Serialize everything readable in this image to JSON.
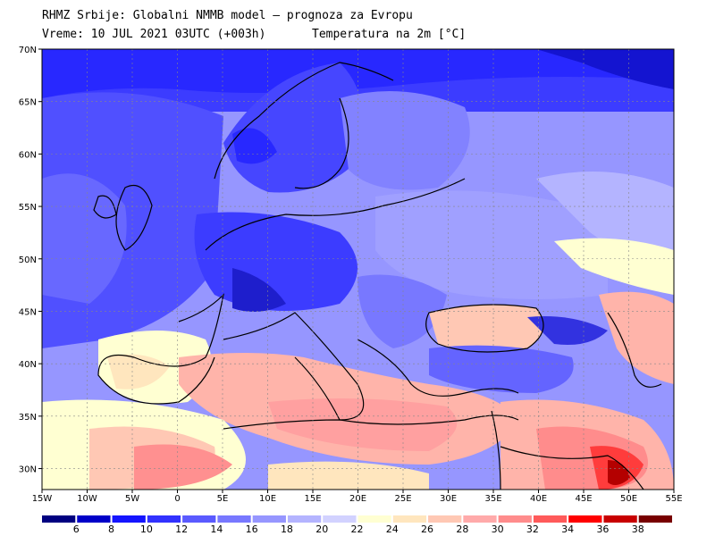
{
  "header": {
    "line1": "RHMZ Srbije: Globalni NMMB model – prognoza za Evropu",
    "line2": "Vreme: 10 JUL 2021 03UTC (+003h)",
    "line3": "Temperatura na 2m [°C]"
  },
  "map": {
    "lon_labels": [
      "15W",
      "10W",
      "5W",
      "0",
      "5E",
      "10E",
      "15E",
      "20E",
      "25E",
      "30E",
      "35E",
      "40E",
      "45E",
      "50E",
      "55E"
    ],
    "lat_labels": [
      "70N",
      "65N",
      "60N",
      "55N",
      "50N",
      "45N",
      "40N",
      "35N",
      "30N"
    ],
    "lon_range": [
      -15,
      55
    ],
    "lat_range": [
      28,
      70
    ]
  },
  "colorbar": {
    "labels": [
      "6",
      "8",
      "10",
      "12",
      "14",
      "16",
      "18",
      "20",
      "22",
      "24",
      "26",
      "28",
      "30",
      "32",
      "34",
      "36",
      "38"
    ],
    "colors": [
      "#000080",
      "#0000c8",
      "#1414ff",
      "#3232ff",
      "#5a5aff",
      "#7878ff",
      "#9696ff",
      "#b4b4ff",
      "#d2d2ff",
      "#ffffd2",
      "#ffe6be",
      "#ffc8b4",
      "#ffaaaa",
      "#ff8c8c",
      "#ff5a5a",
      "#ff0000",
      "#c80000",
      "#780000"
    ]
  }
}
